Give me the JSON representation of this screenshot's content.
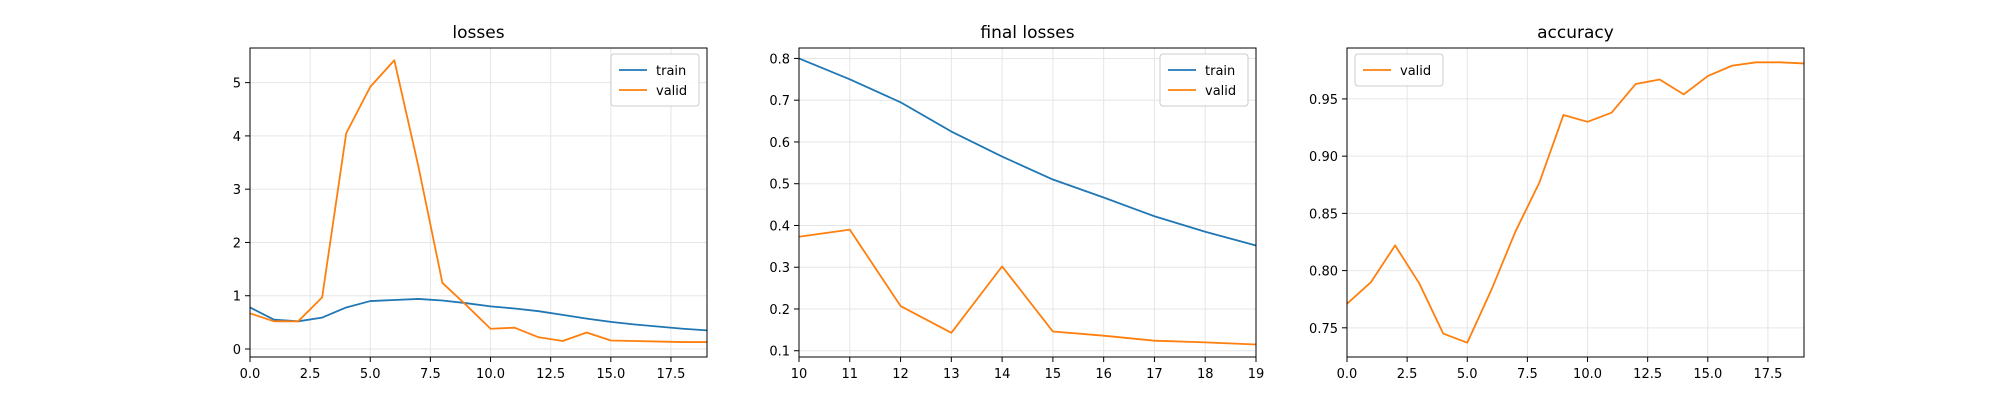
{
  "chart_data": [
    {
      "type": "line",
      "title": "losses",
      "xlabel": "",
      "ylabel": "",
      "xlim": [
        0,
        19
      ],
      "ylim": [
        -0.15,
        5.65
      ],
      "xticks": [
        0,
        2.5,
        5,
        7.5,
        10,
        12.5,
        15,
        17.5
      ],
      "xtick_labels": [
        "0.0",
        "2.5",
        "5.0",
        "7.5",
        "10.0",
        "12.5",
        "15.0",
        "17.5"
      ],
      "yticks": [
        0,
        1,
        2,
        3,
        4,
        5
      ],
      "ytick_labels": [
        "0",
        "1",
        "2",
        "3",
        "4",
        "5"
      ],
      "grid": true,
      "legend": "top-right",
      "series": [
        {
          "name": "train",
          "color": "#1f77b4",
          "x": [
            0,
            1,
            2,
            3,
            4,
            5,
            6,
            7,
            8,
            9,
            10,
            11,
            12,
            13,
            14,
            15,
            16,
            17,
            18,
            19
          ],
          "values": [
            0.78,
            0.55,
            0.52,
            0.59,
            0.78,
            0.9,
            0.92,
            0.94,
            0.91,
            0.86,
            0.8,
            0.76,
            0.71,
            0.64,
            0.57,
            0.51,
            0.46,
            0.42,
            0.38,
            0.35
          ]
        },
        {
          "name": "valid",
          "color": "#ff7f0e",
          "x": [
            0,
            1,
            2,
            3,
            4,
            5,
            6,
            7,
            8,
            9,
            10,
            11,
            12,
            13,
            14,
            15,
            16,
            17,
            18,
            19
          ],
          "values": [
            0.67,
            0.52,
            0.52,
            0.97,
            4.05,
            4.92,
            5.42,
            3.43,
            1.24,
            0.82,
            0.38,
            0.4,
            0.22,
            0.15,
            0.31,
            0.16,
            0.15,
            0.14,
            0.13,
            0.13
          ]
        }
      ]
    },
    {
      "type": "line",
      "title": "final losses",
      "xlabel": "",
      "ylabel": "",
      "xlim": [
        10,
        19
      ],
      "ylim": [
        0.085,
        0.825
      ],
      "xticks": [
        10,
        11,
        12,
        13,
        14,
        15,
        16,
        17,
        18,
        19
      ],
      "xtick_labels": [
        "10",
        "11",
        "12",
        "13",
        "14",
        "15",
        "16",
        "17",
        "18",
        "19"
      ],
      "yticks": [
        0.1,
        0.2,
        0.3,
        0.4,
        0.5,
        0.6,
        0.7,
        0.8
      ],
      "ytick_labels": [
        "0.1",
        "0.2",
        "0.3",
        "0.4",
        "0.5",
        "0.6",
        "0.7",
        "0.8"
      ],
      "grid": true,
      "legend": "top-right",
      "series": [
        {
          "name": "train",
          "color": "#1f77b4",
          "x": [
            10,
            11,
            12,
            13,
            14,
            15,
            16,
            17,
            18,
            19
          ],
          "values": [
            0.8,
            0.75,
            0.695,
            0.625,
            0.565,
            0.51,
            0.467,
            0.422,
            0.385,
            0.352
          ]
        },
        {
          "name": "valid",
          "color": "#ff7f0e",
          "x": [
            10,
            11,
            12,
            13,
            14,
            15,
            16,
            17,
            18,
            19
          ],
          "values": [
            0.373,
            0.39,
            0.207,
            0.143,
            0.302,
            0.146,
            0.136,
            0.124,
            0.12,
            0.115
          ]
        }
      ]
    },
    {
      "type": "line",
      "title": "accuracy",
      "xlabel": "",
      "ylabel": "",
      "xlim": [
        0,
        19
      ],
      "ylim": [
        0.7245,
        0.9945
      ],
      "xticks": [
        0,
        2.5,
        5,
        7.5,
        10,
        12.5,
        15,
        17.5
      ],
      "xtick_labels": [
        "0.0",
        "2.5",
        "5.0",
        "7.5",
        "10.0",
        "12.5",
        "15.0",
        "17.5"
      ],
      "yticks": [
        0.75,
        0.8,
        0.85,
        0.9,
        0.95
      ],
      "ytick_labels": [
        "0.75",
        "0.80",
        "0.85",
        "0.90",
        "0.95"
      ],
      "grid": true,
      "legend": "top-left",
      "series": [
        {
          "name": "valid",
          "color": "#ff7f0e",
          "x": [
            0,
            1,
            2,
            3,
            4,
            5,
            6,
            7,
            8,
            9,
            10,
            11,
            12,
            13,
            14,
            15,
            16,
            17,
            18,
            19
          ],
          "values": [
            0.771,
            0.79,
            0.822,
            0.789,
            0.745,
            0.737,
            0.783,
            0.834,
            0.877,
            0.936,
            0.93,
            0.938,
            0.963,
            0.967,
            0.954,
            0.97,
            0.979,
            0.982,
            0.982,
            0.981
          ]
        }
      ]
    }
  ]
}
